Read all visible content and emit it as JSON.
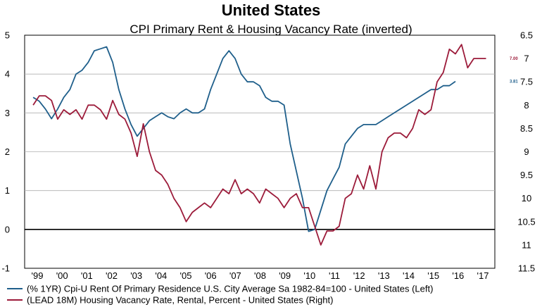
{
  "chart_data": {
    "type": "line",
    "title": "United States",
    "subtitle": "CPI Primary Rent & Housing Vacancy Rate (inverted)",
    "x_tick_labels": [
      "'99",
      "'00",
      "'01",
      "'02",
      "'03",
      "'04",
      "'05",
      "'06",
      "'07",
      "'08",
      "'09",
      "'10",
      "'11",
      "'12",
      "'13",
      "'14",
      "'15",
      "'16",
      "'17"
    ],
    "left_axis": {
      "ylim": [
        -1,
        5
      ],
      "ticks": [
        "5",
        "4",
        "3",
        "2",
        "1",
        "0",
        "-1"
      ]
    },
    "right_axis": {
      "ylim": [
        6.5,
        11.5
      ],
      "inverted": true,
      "ticks": [
        "6.5",
        "7",
        "7.5",
        "8",
        "8.5",
        "9",
        "9.5",
        "10",
        "10.5",
        "11",
        "11.5"
      ]
    },
    "zero_line": 0,
    "grid": true,
    "series": [
      {
        "name": "(% 1YR) Cpi-U Rent Of Primary Residence U.S. City Average Sa 1982-84=100 - United States (Left)",
        "axis": "left",
        "color": "#1f5f8b",
        "end_label": "3.81",
        "x": [
          1998.75,
          1999.0,
          1999.25,
          1999.5,
          1999.75,
          2000.0,
          2000.25,
          2000.5,
          2000.75,
          2001.0,
          2001.25,
          2001.5,
          2001.75,
          2002.0,
          2002.25,
          2002.5,
          2002.75,
          2003.0,
          2003.25,
          2003.5,
          2003.75,
          2004.0,
          2004.25,
          2004.5,
          2004.75,
          2005.0,
          2005.25,
          2005.5,
          2005.75,
          2006.0,
          2006.25,
          2006.5,
          2006.75,
          2007.0,
          2007.25,
          2007.5,
          2007.75,
          2008.0,
          2008.25,
          2008.5,
          2008.75,
          2009.0,
          2009.25,
          2009.5,
          2009.75,
          2010.0,
          2010.25,
          2010.5,
          2010.75,
          2011.0,
          2011.25,
          2011.5,
          2011.75,
          2012.0,
          2012.25,
          2012.5,
          2012.75,
          2013.0,
          2013.25,
          2013.5,
          2013.75,
          2014.0,
          2014.25,
          2014.5,
          2014.75,
          2015.0,
          2015.25,
          2015.5,
          2015.75,
          2016.0
        ],
        "values": [
          3.4,
          3.3,
          3.1,
          2.85,
          3.1,
          3.4,
          3.6,
          4.0,
          4.1,
          4.3,
          4.6,
          4.65,
          4.7,
          4.3,
          3.6,
          3.1,
          2.7,
          2.4,
          2.6,
          2.8,
          2.9,
          3.0,
          2.9,
          2.85,
          3.0,
          3.1,
          3.0,
          3.0,
          3.1,
          3.6,
          4.0,
          4.4,
          4.6,
          4.4,
          4.0,
          3.8,
          3.8,
          3.7,
          3.4,
          3.3,
          3.3,
          3.2,
          2.2,
          1.5,
          0.8,
          -0.05,
          0.0,
          0.5,
          1.0,
          1.3,
          1.6,
          2.2,
          2.4,
          2.6,
          2.7,
          2.7,
          2.7,
          2.8,
          2.9,
          3.0,
          3.1,
          3.2,
          3.3,
          3.4,
          3.5,
          3.6,
          3.6,
          3.7,
          3.7,
          3.81
        ]
      },
      {
        "name": "(LEAD 18M) Housing Vacancy Rate, Rental, Percent - United States (Right)",
        "axis": "right",
        "color": "#9c1b3a",
        "end_label": "7.00",
        "x": [
          1998.75,
          1999.0,
          1999.25,
          1999.5,
          1999.75,
          2000.0,
          2000.25,
          2000.5,
          2000.75,
          2001.0,
          2001.25,
          2001.5,
          2001.75,
          2002.0,
          2002.25,
          2002.5,
          2002.75,
          2003.0,
          2003.25,
          2003.5,
          2003.75,
          2004.0,
          2004.25,
          2004.5,
          2004.75,
          2005.0,
          2005.25,
          2005.5,
          2005.75,
          2006.0,
          2006.25,
          2006.5,
          2006.75,
          2007.0,
          2007.25,
          2007.5,
          2007.75,
          2008.0,
          2008.25,
          2008.5,
          2008.75,
          2009.0,
          2009.25,
          2009.5,
          2009.75,
          2010.0,
          2010.25,
          2010.5,
          2010.75,
          2011.0,
          2011.25,
          2011.5,
          2011.75,
          2012.0,
          2012.25,
          2012.5,
          2012.75,
          2013.0,
          2013.25,
          2013.5,
          2013.75,
          2014.0,
          2014.25,
          2014.5,
          2014.75,
          2015.0,
          2015.25,
          2015.5,
          2015.75,
          2016.0,
          2016.25,
          2016.5,
          2016.75,
          2017.0,
          2017.25
        ],
        "values": [
          8.0,
          7.8,
          7.8,
          7.9,
          8.3,
          8.1,
          8.2,
          8.1,
          8.3,
          8.0,
          8.0,
          8.1,
          8.3,
          7.9,
          8.2,
          8.3,
          8.6,
          9.1,
          8.4,
          9.0,
          9.4,
          9.5,
          9.7,
          10.0,
          10.2,
          10.5,
          10.3,
          10.2,
          10.1,
          10.2,
          10.0,
          9.8,
          9.9,
          9.6,
          9.9,
          9.8,
          9.9,
          10.1,
          9.8,
          9.9,
          10.0,
          10.2,
          10.0,
          9.9,
          10.2,
          10.2,
          10.6,
          11.0,
          10.7,
          10.7,
          10.6,
          10.0,
          9.9,
          9.5,
          9.8,
          9.3,
          9.8,
          9.0,
          8.7,
          8.6,
          8.6,
          8.7,
          8.5,
          8.1,
          8.2,
          8.1,
          7.5,
          7.3,
          6.8,
          6.9,
          6.7,
          7.2,
          7.0,
          7.0,
          7.0
        ]
      }
    ]
  },
  "legend": [
    {
      "label": "(% 1YR) Cpi-U Rent Of Primary Residence U.S. City Average Sa 1982-84=100 - United States  (Left)",
      "color": "#1f5f8b"
    },
    {
      "label": "(LEAD 18M) Housing Vacancy Rate, Rental, Percent - United States  (Right)",
      "color": "#9c1b3a"
    }
  ]
}
